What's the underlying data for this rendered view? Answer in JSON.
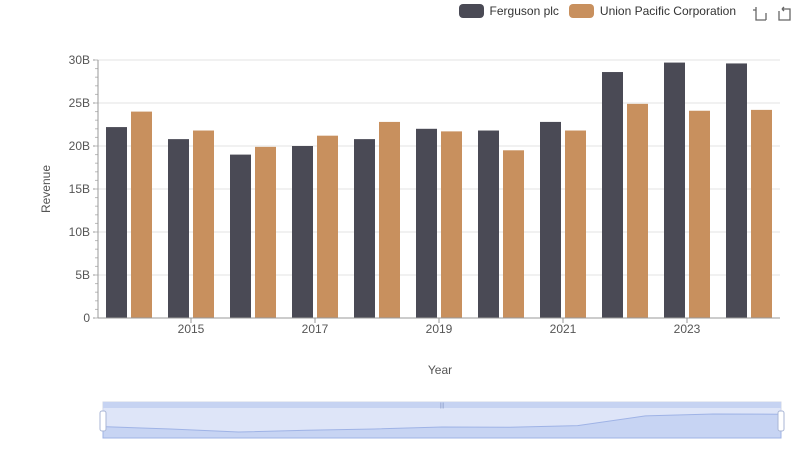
{
  "chart_data": {
    "type": "bar",
    "title": "",
    "xlabel": "Year",
    "ylabel": "Revenue",
    "years": [
      2014,
      2015,
      2016,
      2017,
      2018,
      2019,
      2020,
      2021,
      2022,
      2023,
      2024
    ],
    "x_tick_labels": [
      "2015",
      "2017",
      "2019",
      "2021",
      "2023"
    ],
    "y_tick_labels": [
      "0",
      "5B",
      "10B",
      "15B",
      "20B",
      "25B",
      "30B"
    ],
    "ylim": [
      0,
      30000000000
    ],
    "grid": true,
    "legend_position": "top-right",
    "series": [
      {
        "name": "Ferguson plc",
        "color": "#4a4a55",
        "values": [
          22200000000,
          20800000000,
          19000000000,
          20000000000,
          20800000000,
          22000000000,
          21800000000,
          22800000000,
          28600000000,
          29700000000,
          29600000000
        ]
      },
      {
        "name": "Union Pacific Corporation",
        "color": "#c8905e",
        "values": [
          24000000000,
          21800000000,
          19900000000,
          21200000000,
          22800000000,
          21700000000,
          19500000000,
          21800000000,
          24900000000,
          24100000000,
          24200000000
        ]
      }
    ]
  },
  "toolbar": {
    "zoom_icon": "zoom-select-icon",
    "reset_icon": "zoom-reset-icon"
  }
}
